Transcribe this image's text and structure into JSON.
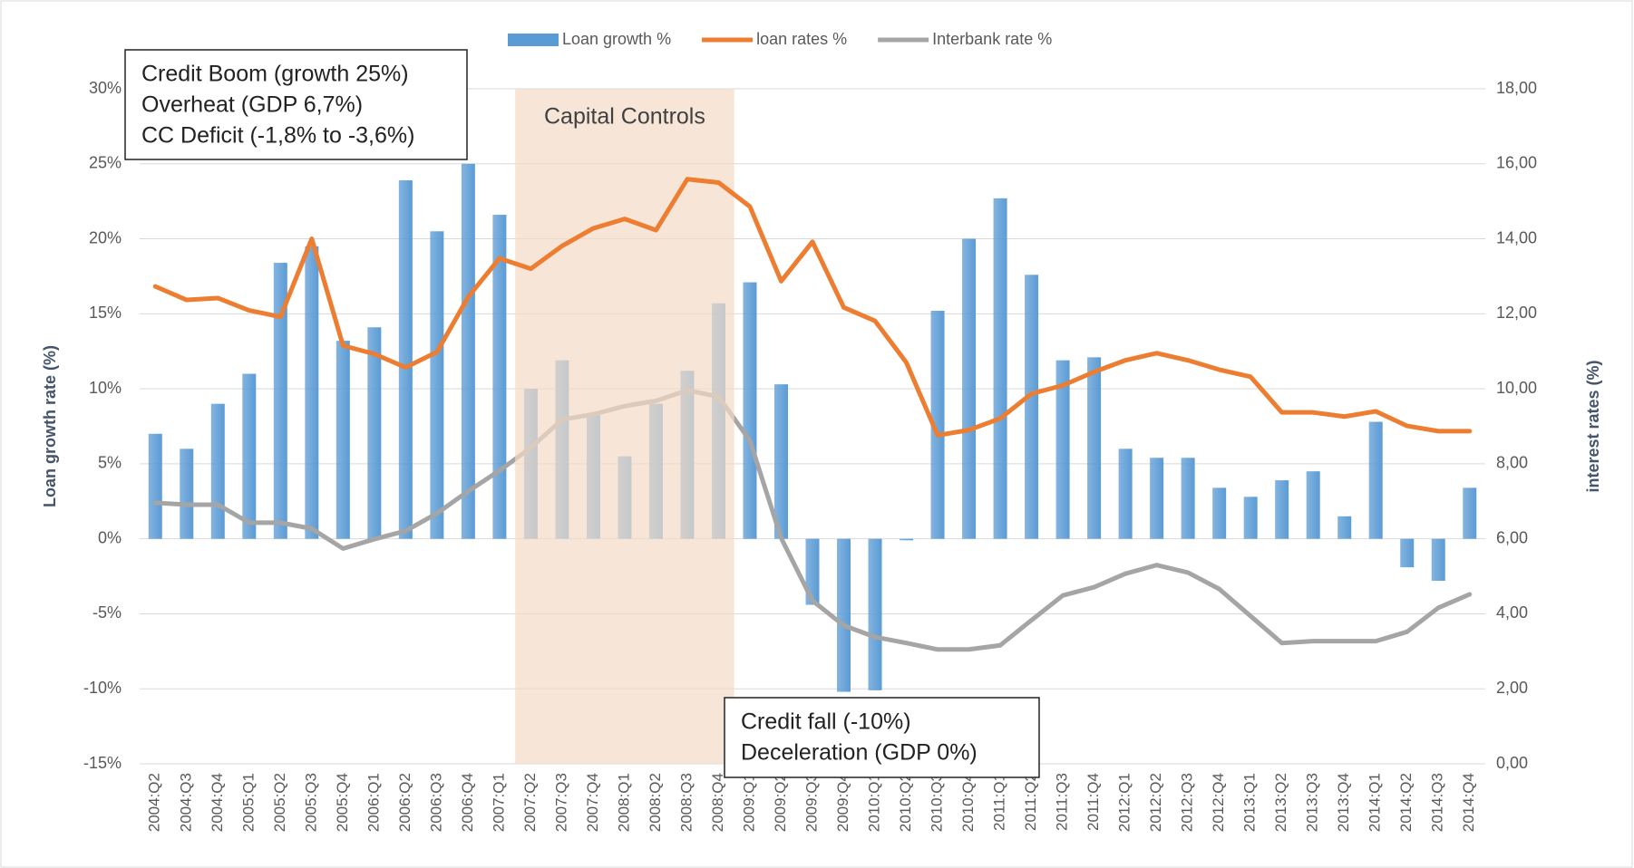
{
  "chart_data": {
    "type": "bar",
    "categories": [
      "2004:Q2",
      "2004:Q3",
      "2004:Q4",
      "2005:Q1",
      "2005:Q2",
      "2005:Q3",
      "2005:Q4",
      "2006:Q1",
      "2006:Q2",
      "2006:Q3",
      "2006:Q4",
      "2007:Q1",
      "2007:Q2",
      "2007:Q3",
      "2007:Q4",
      "2008:Q1",
      "2008:Q2",
      "2008:Q3",
      "2008:Q4",
      "2009:Q1",
      "2009:Q2",
      "2009:Q3",
      "2009:Q4",
      "2010:Q1",
      "2010:Q2",
      "2010:Q3",
      "2010:Q4",
      "2011:Q1",
      "2011:Q2",
      "2011:Q3",
      "2011:Q4",
      "2012:Q1",
      "2012:Q2",
      "2012:Q3",
      "2012:Q4",
      "2013:Q1",
      "2013:Q2",
      "2013:Q3",
      "2013:Q4",
      "2014:Q1",
      "2014:Q2",
      "2014:Q3",
      "2014:Q4"
    ],
    "series": [
      {
        "name": "Loan growth %",
        "type": "bar",
        "color": "#5b9bd5",
        "values": [
          7.0,
          6.0,
          9.0,
          11.0,
          18.4,
          19.5,
          13.2,
          14.1,
          23.9,
          20.5,
          25.0,
          21.6,
          10.0,
          11.9,
          8.3,
          5.5,
          9.0,
          11.2,
          15.7,
          17.1,
          10.3,
          -4.4,
          -10.2,
          -10.1,
          -0.1,
          15.2,
          20.0,
          22.7,
          17.6,
          11.9,
          12.1,
          6.0,
          5.4,
          5.4,
          3.4,
          2.8,
          3.9,
          4.5,
          1.5,
          7.8,
          -1.9,
          -2.8,
          3.4
        ]
      },
      {
        "name": "loan rates %",
        "type": "line",
        "axis": "y2",
        "color": "#ed7d31",
        "values": [
          12.73,
          12.37,
          12.42,
          12.09,
          11.92,
          14.0,
          11.15,
          10.93,
          10.57,
          10.98,
          12.45,
          13.48,
          13.2,
          13.81,
          14.28,
          14.53,
          14.23,
          15.59,
          15.5,
          14.86,
          12.87,
          13.92,
          12.17,
          11.81,
          10.7,
          8.76,
          8.9,
          9.21,
          9.87,
          10.09,
          10.45,
          10.76,
          10.95,
          10.76,
          10.51,
          10.32,
          9.37,
          9.37,
          9.26,
          9.4,
          9.01,
          8.87,
          8.87
        ]
      },
      {
        "name": "Interbank rate %",
        "type": "line",
        "axis": "y2",
        "color": "#a5a5a5",
        "values": [
          6.96,
          6.91,
          6.91,
          6.43,
          6.43,
          6.27,
          5.74,
          5.99,
          6.21,
          6.68,
          7.27,
          7.82,
          8.43,
          9.18,
          9.32,
          9.54,
          9.68,
          9.96,
          9.79,
          8.62,
          6.02,
          4.35,
          3.69,
          3.38,
          3.22,
          3.05,
          3.05,
          3.16,
          3.83,
          4.49,
          4.71,
          5.07,
          5.3,
          5.1,
          4.66,
          3.94,
          3.22,
          3.27,
          3.27,
          3.27,
          3.52,
          4.16,
          4.52
        ]
      }
    ],
    "ylabel": "Loan growth rate (%)",
    "y2label": "interest rates (%)",
    "ylim": [
      -15,
      30
    ],
    "yticks": [
      {
        "value": -15,
        "label": "-15%"
      },
      {
        "value": -10,
        "label": "-10%"
      },
      {
        "value": -5,
        "label": "-5%"
      },
      {
        "value": 0,
        "label": "0%"
      },
      {
        "value": 5,
        "label": "5%"
      },
      {
        "value": 10,
        "label": "10%"
      },
      {
        "value": 15,
        "label": "15%"
      },
      {
        "value": 20,
        "label": "20%"
      },
      {
        "value": 25,
        "label": "25%"
      },
      {
        "value": 30,
        "label": "30%"
      }
    ],
    "y2lim": [
      0,
      18
    ],
    "y2ticks": [
      {
        "value": 0,
        "label": "0,00"
      },
      {
        "value": 2,
        "label": "2,00"
      },
      {
        "value": 4,
        "label": "4,00"
      },
      {
        "value": 6,
        "label": "6,00"
      },
      {
        "value": 8,
        "label": "8,00"
      },
      {
        "value": 10,
        "label": "10,00"
      },
      {
        "value": 12,
        "label": "12,00"
      },
      {
        "value": 14,
        "label": "14,00"
      },
      {
        "value": 16,
        "label": "16,00"
      },
      {
        "value": 18,
        "label": "18,00"
      }
    ],
    "grid": true,
    "legend": "top",
    "shaded_region": {
      "label": "Capital Controls",
      "from": "2007:Q2",
      "to": "2008:Q4",
      "color": "#f4dcc6"
    },
    "annotations": [
      {
        "lines": [
          "Credit Boom (growth 25%)",
          "Overheat  (GDP 6,7%)",
          "CC Deficit (-1,8% to -3,6%)"
        ]
      },
      {
        "lines": [
          "Credit fall (-10%)",
          "Deceleration (GDP 0%)"
        ]
      }
    ]
  }
}
